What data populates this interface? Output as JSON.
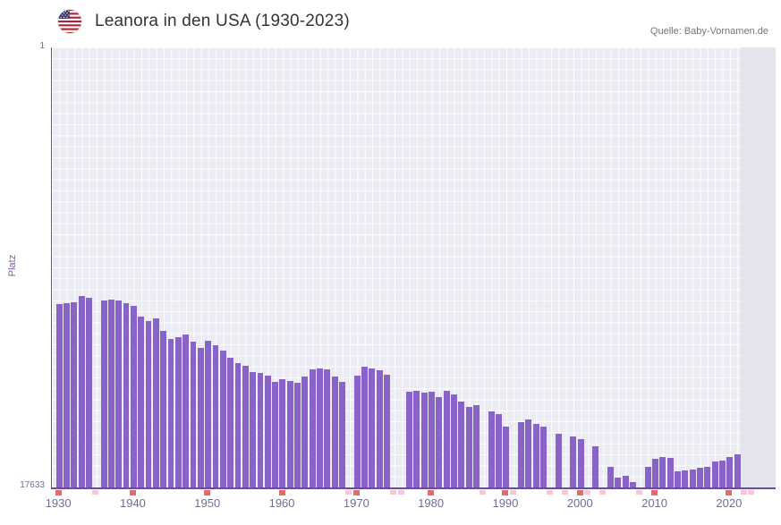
{
  "header": {
    "title": "Leanora in den USA (1930-2023)",
    "source": "Quelle: Baby-Vornamen.de",
    "flag_icon": "us-flag-icon"
  },
  "axes": {
    "y_label": "Platz",
    "y_top_label": "1",
    "y_bottom_label": "17633",
    "x_tick_labels": [
      "1930",
      "1940",
      "1950",
      "1960",
      "1970",
      "1980",
      "1990",
      "2000",
      "2010",
      "2020"
    ]
  },
  "colors": {
    "bar": "#8a63c8",
    "plot_bg": "#ebebf4",
    "grid": "#ffffff",
    "axis": "#6a4c9f",
    "tick_text": "#6e6e96",
    "axis_label_text": "#7a5fa5",
    "decade_tick": "#e06c6c",
    "missing_tick": "#f3c9d2",
    "no_data_band": "#e4e4ec",
    "title_text": "#333333",
    "source_text": "#757575"
  },
  "chart_data": {
    "type": "bar",
    "title": "Leanora in den USA (1930-2023)",
    "xlabel": "",
    "ylabel": "Platz",
    "y_axis_inverted": true,
    "ylim": [
      1,
      17633
    ],
    "grid": true,
    "legend": "none",
    "x_ticks": [
      1930,
      1940,
      1950,
      1960,
      1970,
      1980,
      1990,
      2000,
      2010,
      2020
    ],
    "no_data_years": [
      2022,
      2023
    ],
    "years": [
      1930,
      1931,
      1932,
      1933,
      1934,
      1935,
      1936,
      1937,
      1938,
      1939,
      1940,
      1941,
      1942,
      1943,
      1944,
      1945,
      1946,
      1947,
      1948,
      1949,
      1950,
      1951,
      1952,
      1953,
      1954,
      1955,
      1956,
      1957,
      1958,
      1959,
      1960,
      1961,
      1962,
      1963,
      1964,
      1965,
      1966,
      1967,
      1968,
      1969,
      1970,
      1971,
      1972,
      1973,
      1974,
      1975,
      1976,
      1977,
      1978,
      1979,
      1980,
      1981,
      1982,
      1983,
      1984,
      1985,
      1986,
      1987,
      1988,
      1989,
      1990,
      1991,
      1992,
      1993,
      1994,
      1995,
      1996,
      1997,
      1998,
      1999,
      2000,
      2001,
      2002,
      2003,
      2004,
      2005,
      2006,
      2007,
      2008,
      2009,
      2010,
      2011,
      2012,
      2013,
      2014,
      2015,
      2016,
      2017,
      2018,
      2019,
      2020,
      2021,
      2022,
      2023
    ],
    "ranks": [
      10300,
      10250,
      10200,
      9950,
      10050,
      null,
      10150,
      10100,
      10150,
      10250,
      10350,
      10800,
      10950,
      10850,
      11350,
      11700,
      11600,
      11500,
      11800,
      12050,
      11750,
      11950,
      12150,
      12450,
      12650,
      12750,
      13000,
      13050,
      13150,
      13400,
      13300,
      13350,
      13450,
      13200,
      12900,
      12850,
      12900,
      13200,
      13400,
      null,
      13150,
      12800,
      12850,
      12950,
      13100,
      null,
      null,
      13800,
      13750,
      13850,
      13800,
      14000,
      13750,
      13900,
      14200,
      14400,
      14350,
      null,
      14600,
      14700,
      15200,
      null,
      15000,
      14900,
      15100,
      15200,
      null,
      15500,
      null,
      15600,
      15700,
      null,
      16000,
      null,
      16800,
      17250,
      17150,
      17400,
      null,
      16800,
      16500,
      16400,
      16450,
      17000,
      16950,
      16900,
      16850,
      16800,
      16600,
      16550,
      16400,
      16300,
      null,
      null
    ]
  }
}
